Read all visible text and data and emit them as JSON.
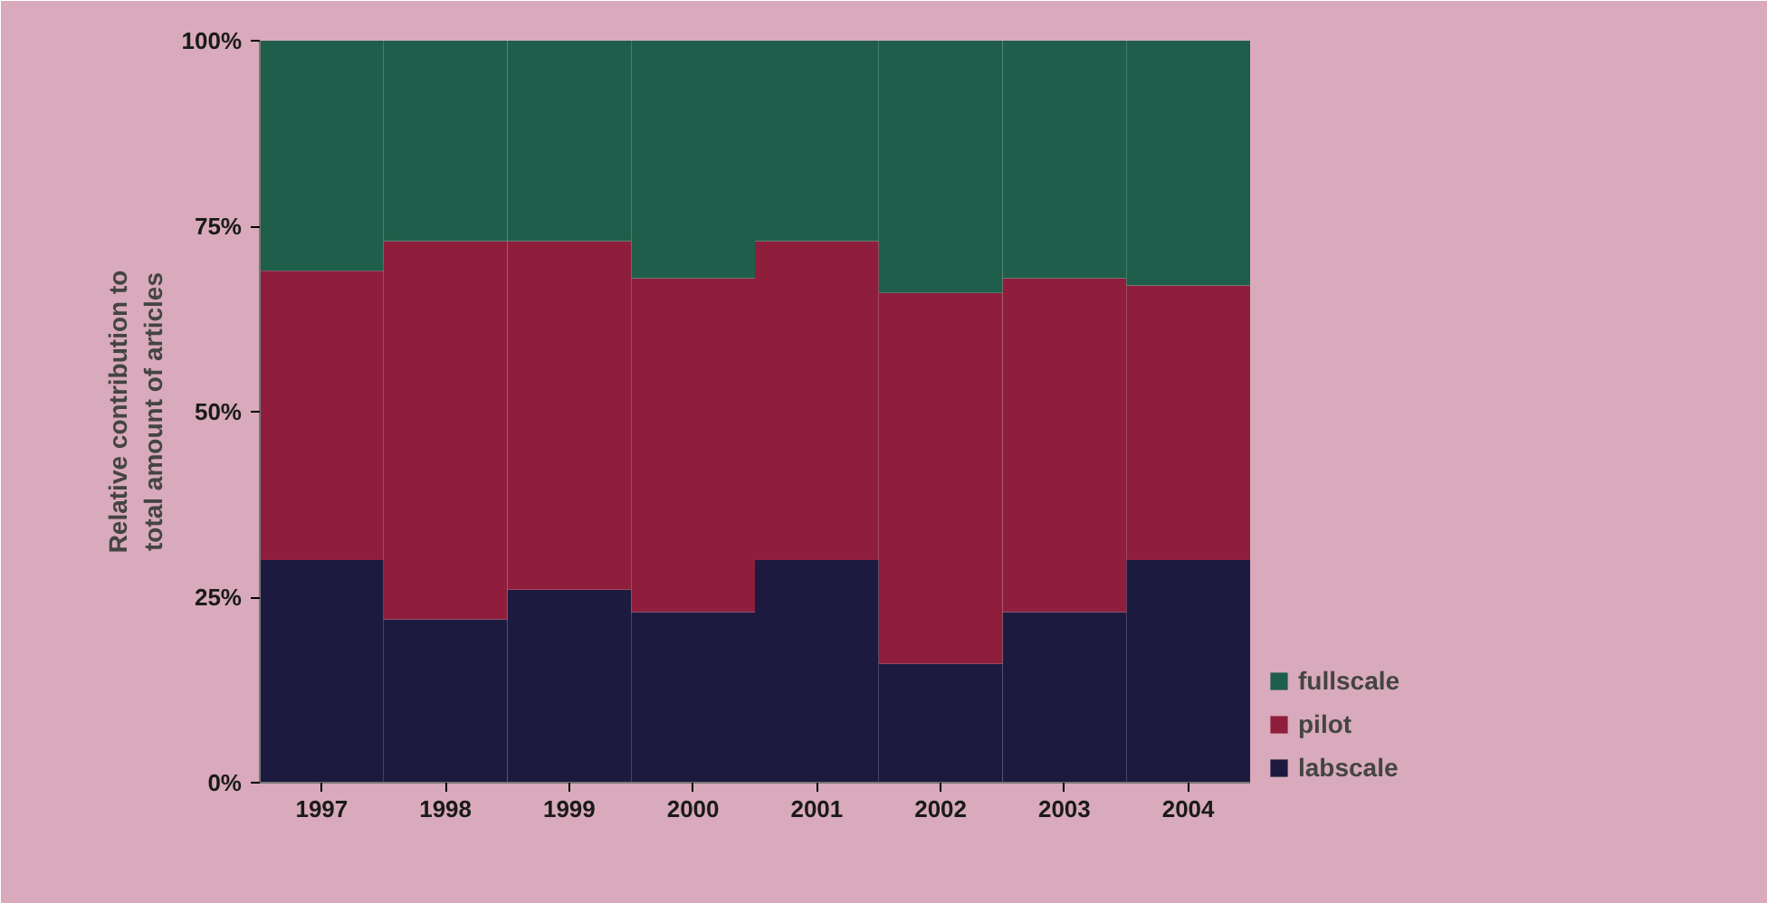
{
  "chart_data": {
    "type": "bar",
    "stacked": true,
    "ylabel": "Relative contribution to\ntotal amount of articles",
    "categories": [
      "1997",
      "1998",
      "1999",
      "2000",
      "2001",
      "2002",
      "2003",
      "2004"
    ],
    "series": [
      {
        "name": "labscale",
        "color": "#1c1a3e",
        "values": [
          30,
          22,
          26,
          23,
          30,
          16,
          23,
          30
        ]
      },
      {
        "name": "pilot",
        "color": "#8e1e3c",
        "values": [
          39,
          51,
          47,
          45,
          43,
          50,
          45,
          37
        ]
      },
      {
        "name": "fullscale",
        "color": "#1f5e4a",
        "values": [
          31,
          27,
          27,
          32,
          27,
          34,
          32,
          33
        ]
      }
    ],
    "ylim": [
      0,
      100
    ],
    "yticks": [
      {
        "value": 0,
        "label": "0%"
      },
      {
        "value": 25,
        "label": "25%"
      },
      {
        "value": 50,
        "label": "50%"
      },
      {
        "value": 75,
        "label": "75%"
      },
      {
        "value": 100,
        "label": "100%"
      }
    ],
    "grid": false,
    "legend": "right"
  }
}
